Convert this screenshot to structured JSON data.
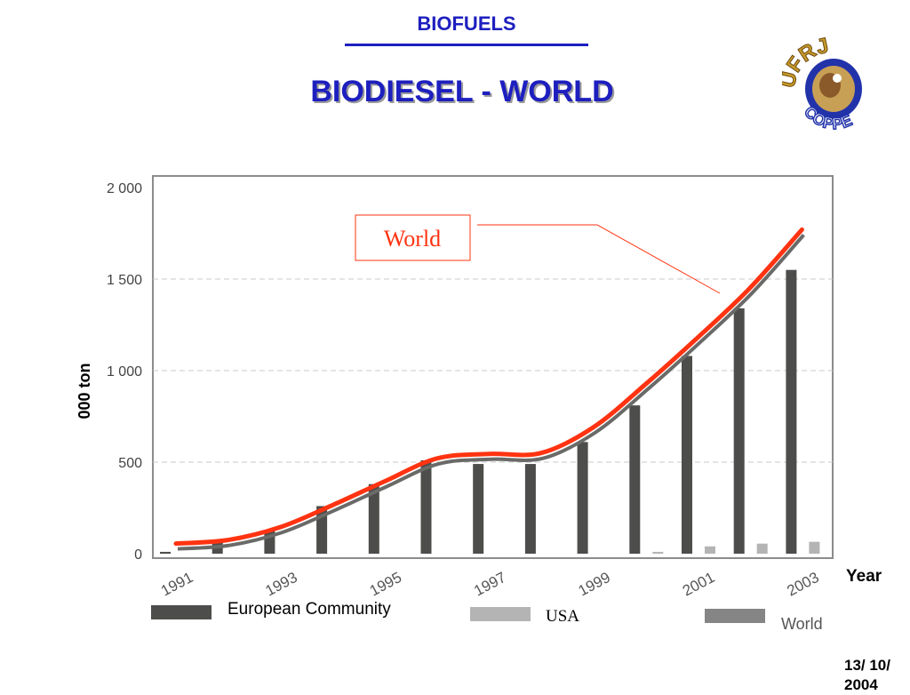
{
  "header": {
    "section": "BIOFUELS",
    "title": "BIODIESEL - WORLD"
  },
  "logo": {
    "top_text": "UFRJ",
    "bottom_text": "COPPE"
  },
  "footer": {
    "page": "13/ 10/ 2004"
  },
  "colors": {
    "title": "#1d1fbf",
    "world_line": "#ff3311",
    "ec_bar": "#4d4d4b",
    "usa_bar": "#b4b4b4"
  },
  "chart_data": {
    "type": "bar",
    "ylabel": "000 ton",
    "xlabel": "Year",
    "ylim": [
      0,
      2000
    ],
    "yticks": [
      0,
      500,
      1000,
      1500,
      2000
    ],
    "ytick_labels": [
      "0",
      "500",
      "1 000",
      "1 500",
      "2 000"
    ],
    "categories": [
      "1991",
      "1992",
      "1993",
      "1994",
      "1995",
      "1996",
      "1997",
      "1998",
      "1999",
      "2000",
      "2001",
      "2002",
      "2003"
    ],
    "xtick_labels": [
      "1991",
      "1993",
      "1995",
      "1997",
      "1999",
      "2001",
      "2003"
    ],
    "series": [
      {
        "name": "European Community",
        "type": "bar",
        "values": [
          10,
          70,
          130,
          260,
          380,
          510,
          490,
          490,
          610,
          810,
          1080,
          1340,
          1550
        ]
      },
      {
        "name": "USA",
        "type": "bar",
        "values": [
          0,
          0,
          0,
          0,
          0,
          0,
          0,
          0,
          0,
          10,
          40,
          55,
          65
        ]
      },
      {
        "name": "World",
        "type": "line",
        "values": [
          55,
          75,
          145,
          265,
          395,
          520,
          545,
          550,
          690,
          925,
          1180,
          1450,
          1770
        ]
      }
    ],
    "annotation": "World",
    "legend": [
      "European Community",
      "USA",
      "World"
    ],
    "grid": true
  }
}
